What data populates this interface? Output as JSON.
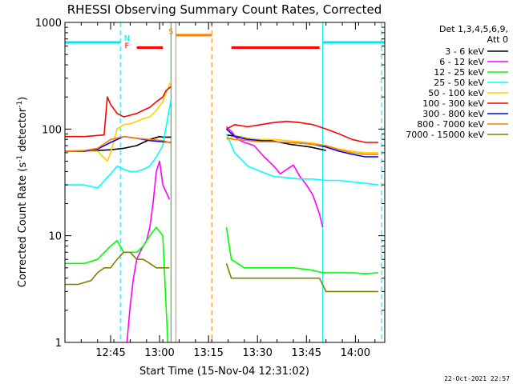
{
  "chart_data": {
    "type": "line",
    "title": "RHESSI Observing Summary Count Rates, Corrected",
    "xlabel": "Start Time (15-Nov-04 12:31:02)",
    "ylabel_main": "Corrected Count Rate (s",
    "ylabel_sup1": "-1",
    "ylabel_mid": " detector",
    "ylabel_sup2": "-1",
    "ylabel_end": ")",
    "y_scale": "log",
    "ylim": [
      1,
      1000
    ],
    "x_unit": "minutes after 12:31:02",
    "xlim": [
      0,
      98
    ],
    "x_ticks": [
      {
        "value": 14,
        "label": "12:45"
      },
      {
        "value": 29,
        "label": "13:00"
      },
      {
        "value": 44,
        "label": "13:15"
      },
      {
        "value": 59,
        "label": "13:30"
      },
      {
        "value": 74,
        "label": "13:45"
      },
      {
        "value": 89,
        "label": "14:00"
      }
    ],
    "y_ticks": [
      {
        "value": 1,
        "label": "1"
      },
      {
        "value": 10,
        "label": "10"
      },
      {
        "value": 100,
        "label": "100"
      },
      {
        "value": 1000,
        "label": "1000"
      }
    ],
    "legend_header": [
      "Det 1,3,4,5,6,9,",
      "Att 0"
    ],
    "legend_position": "top-right-outside",
    "series": [
      {
        "name": "3 - 6 keV",
        "color": "#000000",
        "segments": [
          {
            "x": [
              0,
              10,
              14,
              18,
              22,
              26,
              29,
              30,
              32.5
            ],
            "y": [
              62,
              63,
              64,
              66,
              70,
              80,
              85,
              84,
              84
            ]
          },
          {
            "x": [
              49.5,
              53,
              56,
              59,
              63,
              66,
              69,
              72,
              75,
              77,
              79,
              80
            ],
            "y": [
              88,
              85,
              82,
              80,
              78,
              75,
              72,
              70,
              68,
              66,
              64,
              63
            ]
          }
        ]
      },
      {
        "name": "6 - 12 keV",
        "color": "#ff00ff",
        "segments": [
          {
            "x": [
              18,
              19,
              20,
              21,
              22,
              23,
              24,
              25,
              26,
              27,
              28,
              29,
              30,
              32
            ],
            "y": [
              0.6,
              1,
              2.2,
              4,
              6,
              7,
              8,
              9,
              12,
              20,
              40,
              50,
              30,
              22
            ]
          },
          {
            "x": [
              49.5,
              51,
              53,
              55,
              58,
              61,
              64,
              66,
              68,
              70,
              72,
              74,
              76,
              78,
              79
            ],
            "y": [
              105,
              95,
              80,
              75,
              70,
              55,
              45,
              38,
              42,
              46,
              36,
              30,
              24,
              16,
              12
            ]
          }
        ]
      },
      {
        "name": "12 - 25 keV",
        "color": "#00ff00",
        "segments": [
          {
            "x": [
              0,
              6,
              10,
              14,
              16,
              18,
              20,
              22,
              24,
              26,
              28,
              30,
              31.5,
              32
            ],
            "y": [
              5.5,
              5.5,
              6,
              8,
              9,
              7,
              7,
              7,
              8,
              10,
              12,
              10,
              1,
              1
            ]
          },
          {
            "x": [
              49.5,
              51,
              55,
              60,
              65,
              70,
              75,
              79,
              82,
              85,
              88,
              92,
              96
            ],
            "y": [
              12,
              6,
              5,
              5,
              5,
              5,
              4.8,
              4.5,
              4.5,
              4.5,
              4.5,
              4.4,
              4.5
            ]
          }
        ]
      },
      {
        "name": "25 - 50 keV",
        "color": "#00ffff",
        "segments": [
          {
            "x": [
              0,
              6,
              10,
              14,
              16,
              18,
              20,
              22,
              24,
              26,
              28,
              30,
              32.5
            ],
            "y": [
              30,
              30,
              28,
              38,
              45,
              42,
              40,
              40,
              42,
              45,
              55,
              70,
              190
            ]
          },
          {
            "x": [
              49.5,
              52,
              56,
              60,
              64,
              68,
              72,
              76,
              80,
              84,
              88,
              92,
              96
            ],
            "y": [
              90,
              60,
              45,
              40,
              36,
              35,
              34,
              34,
              33,
              33,
              32,
              31,
              30
            ]
          }
        ]
      },
      {
        "name": "50 - 100 keV",
        "color": "#ffd000",
        "segments": [
          {
            "x": [
              0,
              6,
              10,
              13,
              14,
              16,
              18,
              20,
              22,
              24,
              26,
              28,
              30,
              31,
              32.5
            ],
            "y": [
              62,
              62,
              62,
              50,
              60,
              100,
              110,
              112,
              118,
              125,
              130,
              150,
              180,
              220,
              280
            ]
          },
          {
            "x": [
              49.5,
              52,
              56,
              60,
              64,
              68,
              72,
              76,
              80,
              84,
              88,
              92,
              96
            ],
            "y": [
              80,
              85,
              82,
              80,
              80,
              78,
              76,
              74,
              70,
              65,
              62,
              60,
              60
            ]
          }
        ]
      },
      {
        "name": "100 - 300 keV",
        "color": "#ff0000",
        "segments": [
          {
            "x": [
              0,
              6,
              12,
              13,
              14,
              16,
              18,
              20,
              22,
              24,
              26,
              28,
              30,
              31,
              32.5
            ],
            "y": [
              85,
              85,
              88,
              200,
              170,
              140,
              130,
              135,
              140,
              150,
              160,
              180,
              200,
              230,
              250
            ]
          },
          {
            "x": [
              49.5,
              52,
              56,
              60,
              64,
              68,
              72,
              76,
              80,
              84,
              88,
              92,
              96
            ],
            "y": [
              100,
              110,
              105,
              110,
              115,
              118,
              115,
              110,
              100,
              90,
              80,
              75,
              75
            ]
          }
        ]
      },
      {
        "name": "300 - 800 keV",
        "color": "#0000ff",
        "segments": [
          {
            "x": [
              0,
              6,
              10,
              14,
              18,
              22,
              26,
              30,
              32.5
            ],
            "y": [
              62,
              62,
              65,
              75,
              85,
              82,
              78,
              76,
              75
            ]
          },
          {
            "x": [
              49.5,
              52,
              56,
              60,
              64,
              68,
              72,
              76,
              80,
              84,
              88,
              92,
              96
            ],
            "y": [
              100,
              85,
              80,
              78,
              76,
              75,
              74,
              72,
              68,
              62,
              58,
              55,
              55
            ]
          }
        ]
      },
      {
        "name": "800 - 7000 keV",
        "color": "#ff8000",
        "segments": [
          {
            "x": [
              0,
              6,
              10,
              14,
              18,
              22,
              26,
              30,
              32.5
            ],
            "y": [
              62,
              63,
              66,
              80,
              85,
              82,
              80,
              78,
              74
            ]
          },
          {
            "x": [
              49.5,
              52,
              56,
              60,
              64,
              68,
              72,
              76,
              80,
              84,
              88,
              92,
              96
            ],
            "y": [
              82,
              80,
              78,
              76,
              76,
              75,
              74,
              72,
              70,
              64,
              60,
              58,
              58
            ]
          }
        ]
      },
      {
        "name": "7000 - 15000 keV",
        "color": "#808000",
        "segments": [
          {
            "x": [
              0,
              4,
              8,
              10,
              12,
              14,
              16,
              18,
              20,
              22,
              24,
              26,
              28,
              30,
              32
            ],
            "y": [
              3.5,
              3.5,
              3.8,
              4.5,
              5,
              5,
              6,
              7,
              7,
              6,
              6,
              5.5,
              5,
              5,
              5
            ]
          },
          {
            "x": [
              49.5,
              51,
              54,
              58,
              62,
              66,
              70,
              74,
              78,
              80,
              84,
              88,
              92,
              96
            ],
            "y": [
              5.5,
              4,
              4,
              4,
              4,
              4,
              4,
              4,
              4,
              3,
              3,
              3,
              3,
              3
            ]
          }
        ]
      }
    ],
    "annotations": [
      {
        "type": "cyan_bar",
        "color": "#00e5ee",
        "x1": 0,
        "x2": 17,
        "y": 650
      },
      {
        "type": "cyan_bar",
        "color": "#00e5ee",
        "x1": 79,
        "x2": 98,
        "y": 650
      },
      {
        "type": "cyan_solid_line",
        "color": "#00e5ee",
        "x": 0
      },
      {
        "type": "cyan_dashed_line",
        "color": "#00e5ee",
        "x": 17
      },
      {
        "type": "cyan_solid_line",
        "color": "#00e5ee",
        "x": 79
      },
      {
        "type": "cyan_dashed_line",
        "color": "#00e5ee",
        "x": 97
      },
      {
        "type": "green_solid_line",
        "color": "#00c000",
        "x": 32.5
      },
      {
        "type": "orange_solid_line",
        "color": "#ff8000",
        "x": 34
      },
      {
        "type": "orange_dashed_line",
        "color": "#ff8000",
        "x": 45
      },
      {
        "type": "orange_bar",
        "color": "#ff8000",
        "x1": 34,
        "x2": 45,
        "y": 760
      },
      {
        "type": "red_bar",
        "color": "#ff0000",
        "x1": 22,
        "x2": 30,
        "y": 580
      },
      {
        "type": "red_bar",
        "color": "#ff0000",
        "x1": 51,
        "x2": 78,
        "y": 580
      }
    ],
    "flag_labels": [
      {
        "text": "N",
        "color": "#00e5ee",
        "x": 19,
        "y": 670
      },
      {
        "text": "F",
        "color": "#ff0000",
        "x": 19,
        "y": 570
      },
      {
        "text": "S",
        "color": "#ff8000",
        "x": 32.5,
        "y": 780
      }
    ]
  },
  "footer": {
    "timestamp": "22-Oct-2021 22:57"
  }
}
